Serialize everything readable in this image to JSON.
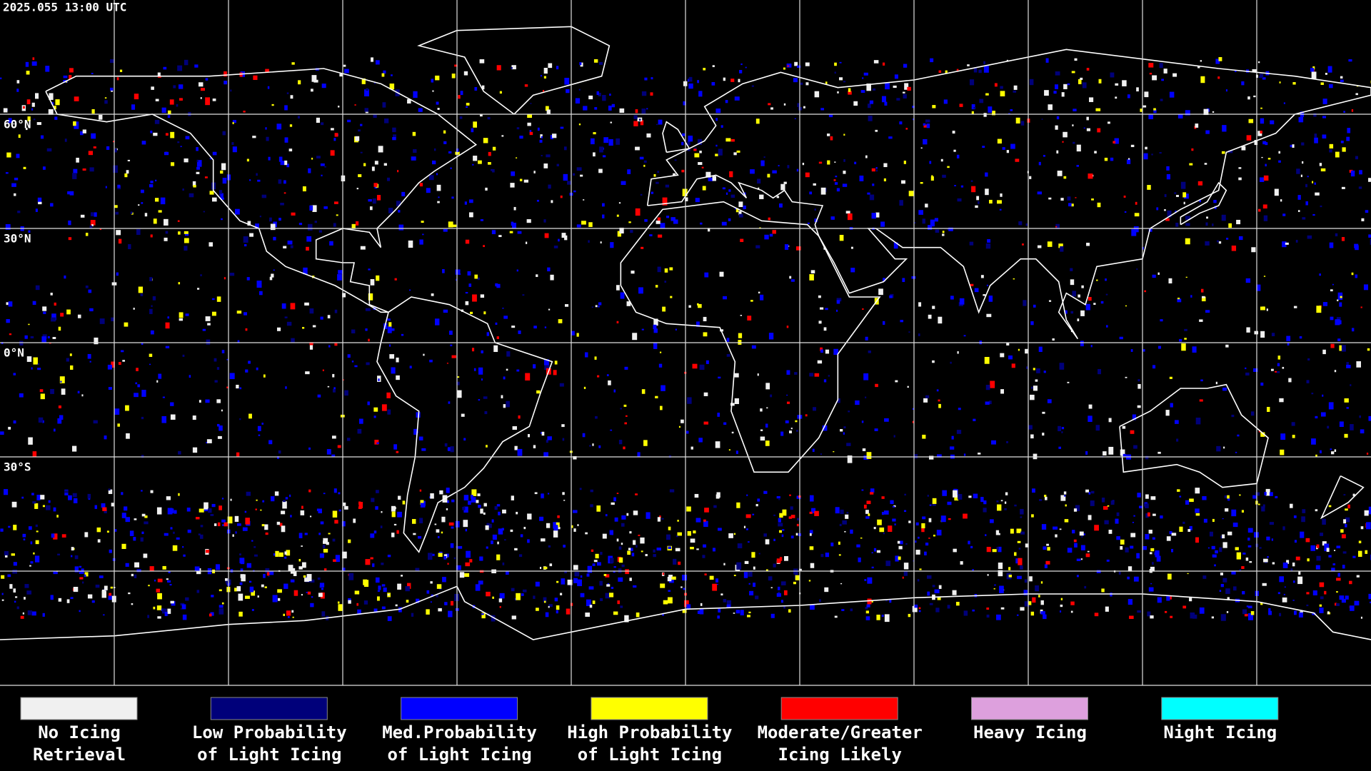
{
  "header": {
    "timestamp": "2025.055 13:00 UTC"
  },
  "map": {
    "latitude_labels": [
      "60°N",
      "30°N",
      "0°N",
      "30°S"
    ]
  },
  "legend": {
    "items": [
      {
        "label_lines": [
          "No Icing",
          "Retrieval"
        ],
        "color": "#f0f0f0"
      },
      {
        "label_lines": [
          "Low Probability",
          "of Light Icing"
        ],
        "color": "#00007a"
      },
      {
        "label_lines": [
          "Med.Probability",
          "of Light Icing"
        ],
        "color": "#0000ff"
      },
      {
        "label_lines": [
          "High Probability",
          "of Light Icing"
        ],
        "color": "#ffff00"
      },
      {
        "label_lines": [
          "Moderate/Greater",
          "Icing Likely"
        ],
        "color": "#ff0000"
      },
      {
        "label_lines": [
          "Heavy Icing"
        ],
        "color": "#dda0dd"
      },
      {
        "label_lines": [
          "Night Icing"
        ],
        "color": "#00ffff"
      }
    ]
  }
}
